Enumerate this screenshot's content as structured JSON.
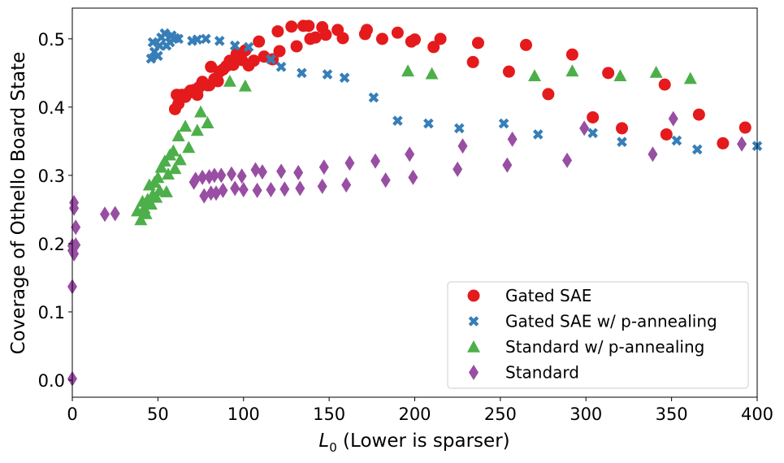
{
  "chart_data": {
    "type": "scatter",
    "xlabel_main": "L",
    "xlabel_sub": "0",
    "xlabel_rest": " (Lower is sparser)",
    "ylabel": "Coverage of Othello Board State",
    "xlim": [
      0,
      400
    ],
    "ylim": [
      -0.025,
      0.545
    ],
    "xticks": [
      0,
      50,
      100,
      150,
      200,
      250,
      300,
      350,
      400
    ],
    "yticks": [
      0.0,
      0.1,
      0.2,
      0.3,
      0.4,
      0.5
    ],
    "xtick_labels": [
      "0",
      "50",
      "100",
      "150",
      "200",
      "250",
      "300",
      "350",
      "400"
    ],
    "ytick_labels": [
      "0.0",
      "0.1",
      "0.2",
      "0.3",
      "0.4",
      "0.5"
    ],
    "legend_position": "lower-right",
    "series": [
      {
        "name": "Gated SAE",
        "marker": "circle",
        "color": "#e41a1c",
        "points": [
          [
            60,
            0.397
          ],
          [
            62,
            0.405
          ],
          [
            61,
            0.418
          ],
          [
            64,
            0.418
          ],
          [
            66,
            0.415
          ],
          [
            68,
            0.421
          ],
          [
            69,
            0.424
          ],
          [
            71,
            0.425
          ],
          [
            73,
            0.418
          ],
          [
            74,
            0.429
          ],
          [
            76,
            0.437
          ],
          [
            79,
            0.432
          ],
          [
            80,
            0.432
          ],
          [
            81,
            0.459
          ],
          [
            83,
            0.441
          ],
          [
            85,
            0.438
          ],
          [
            86,
            0.452
          ],
          [
            88,
            0.455
          ],
          [
            90,
            0.46
          ],
          [
            92,
            0.468
          ],
          [
            94,
            0.462
          ],
          [
            96,
            0.478
          ],
          [
            99,
            0.469
          ],
          [
            101,
            0.483
          ],
          [
            103,
            0.461
          ],
          [
            106,
            0.468
          ],
          [
            109,
            0.496
          ],
          [
            112,
            0.474
          ],
          [
            117,
            0.47
          ],
          [
            120,
            0.511
          ],
          [
            121,
            0.482
          ],
          [
            128,
            0.518
          ],
          [
            131,
            0.489
          ],
          [
            135,
            0.519
          ],
          [
            138,
            0.519
          ],
          [
            139,
            0.5
          ],
          [
            142,
            0.502
          ],
          [
            146,
            0.517
          ],
          [
            148,
            0.506
          ],
          [
            155,
            0.513
          ],
          [
            158,
            0.501
          ],
          [
            171,
            0.507
          ],
          [
            172,
            0.513
          ],
          [
            181,
            0.5
          ],
          [
            190,
            0.509
          ],
          [
            198,
            0.496
          ],
          [
            200,
            0.499
          ],
          [
            211,
            0.488
          ],
          [
            215,
            0.5
          ],
          [
            234,
            0.466
          ],
          [
            237,
            0.494
          ],
          [
            255,
            0.452
          ],
          [
            265,
            0.491
          ],
          [
            278,
            0.419
          ],
          [
            292,
            0.477
          ],
          [
            304,
            0.385
          ],
          [
            313,
            0.45
          ],
          [
            321,
            0.369
          ],
          [
            346,
            0.433
          ],
          [
            347,
            0.36
          ],
          [
            366,
            0.389
          ],
          [
            380,
            0.347
          ],
          [
            393,
            0.37
          ]
        ]
      },
      {
        "name": "Gated SAE w/ p-annealing",
        "marker": "x",
        "color": "#377eb8",
        "points": [
          [
            46,
            0.471
          ],
          [
            47,
            0.495
          ],
          [
            48,
            0.481
          ],
          [
            50,
            0.475
          ],
          [
            51,
            0.49
          ],
          [
            52,
            0.502
          ],
          [
            54,
            0.508
          ],
          [
            55,
            0.49
          ],
          [
            57,
            0.495
          ],
          [
            58,
            0.505
          ],
          [
            60,
            0.501
          ],
          [
            62,
            0.5
          ],
          [
            70,
            0.497
          ],
          [
            73,
            0.499
          ],
          [
            78,
            0.5
          ],
          [
            86,
            0.497
          ],
          [
            95,
            0.49
          ],
          [
            103,
            0.488
          ],
          [
            116,
            0.47
          ],
          [
            122,
            0.459
          ],
          [
            134,
            0.45
          ],
          [
            149,
            0.448
          ],
          [
            159,
            0.443
          ],
          [
            176,
            0.414
          ],
          [
            190,
            0.38
          ],
          [
            208,
            0.376
          ],
          [
            226,
            0.369
          ],
          [
            252,
            0.376
          ],
          [
            272,
            0.36
          ],
          [
            304,
            0.362
          ],
          [
            321,
            0.349
          ],
          [
            353,
            0.351
          ],
          [
            365,
            0.338
          ],
          [
            400,
            0.343
          ]
        ]
      },
      {
        "name": "Standard w/ p-annealing",
        "marker": "triangle",
        "color": "#4daf4a",
        "points": [
          [
            38,
            0.248
          ],
          [
            40,
            0.235
          ],
          [
            41,
            0.262
          ],
          [
            42,
            0.252
          ],
          [
            43,
            0.244
          ],
          [
            44,
            0.265
          ],
          [
            45,
            0.286
          ],
          [
            46,
            0.258
          ],
          [
            47,
            0.272
          ],
          [
            48,
            0.29
          ],
          [
            49,
            0.268
          ],
          [
            50,
            0.297
          ],
          [
            51,
            0.278
          ],
          [
            52,
            0.312
          ],
          [
            54,
            0.321
          ],
          [
            55,
            0.276
          ],
          [
            56,
            0.302
          ],
          [
            57,
            0.33
          ],
          [
            59,
            0.336
          ],
          [
            60,
            0.31
          ],
          [
            62,
            0.358
          ],
          [
            63,
            0.323
          ],
          [
            66,
            0.372
          ],
          [
            68,
            0.341
          ],
          [
            73,
            0.366
          ],
          [
            75,
            0.393
          ],
          [
            79,
            0.377
          ],
          [
            92,
            0.438
          ],
          [
            101,
            0.431
          ],
          [
            196,
            0.453
          ],
          [
            210,
            0.449
          ],
          [
            270,
            0.446
          ],
          [
            292,
            0.453
          ],
          [
            320,
            0.446
          ],
          [
            341,
            0.451
          ],
          [
            361,
            0.442
          ]
        ]
      },
      {
        "name": "Standard",
        "marker": "diamond",
        "color": "#984ea3",
        "points": [
          [
            0,
            0.002
          ],
          [
            0,
            0.137
          ],
          [
            0,
            0.19
          ],
          [
            0,
            0.197
          ],
          [
            1,
            0.185
          ],
          [
            1,
            0.252
          ],
          [
            1,
            0.26
          ],
          [
            2,
            0.198
          ],
          [
            2,
            0.224
          ],
          [
            19,
            0.243
          ],
          [
            25,
            0.244
          ],
          [
            71,
            0.29
          ],
          [
            72,
            0.294
          ],
          [
            76,
            0.297
          ],
          [
            77,
            0.27
          ],
          [
            80,
            0.298
          ],
          [
            81,
            0.274
          ],
          [
            83,
            0.3
          ],
          [
            84,
            0.274
          ],
          [
            87,
            0.3
          ],
          [
            88,
            0.278
          ],
          [
            93,
            0.302
          ],
          [
            95,
            0.281
          ],
          [
            99,
            0.299
          ],
          [
            100,
            0.279
          ],
          [
            107,
            0.308
          ],
          [
            108,
            0.278
          ],
          [
            111,
            0.305
          ],
          [
            116,
            0.279
          ],
          [
            122,
            0.306
          ],
          [
            124,
            0.28
          ],
          [
            132,
            0.304
          ],
          [
            133,
            0.281
          ],
          [
            146,
            0.284
          ],
          [
            147,
            0.312
          ],
          [
            160,
            0.286
          ],
          [
            162,
            0.318
          ],
          [
            177,
            0.321
          ],
          [
            183,
            0.293
          ],
          [
            197,
            0.331
          ],
          [
            199,
            0.297
          ],
          [
            225,
            0.309
          ],
          [
            228,
            0.343
          ],
          [
            254,
            0.315
          ],
          [
            257,
            0.353
          ],
          [
            289,
            0.322
          ],
          [
            299,
            0.369
          ],
          [
            339,
            0.331
          ],
          [
            351,
            0.383
          ],
          [
            391,
            0.346
          ]
        ]
      }
    ]
  }
}
